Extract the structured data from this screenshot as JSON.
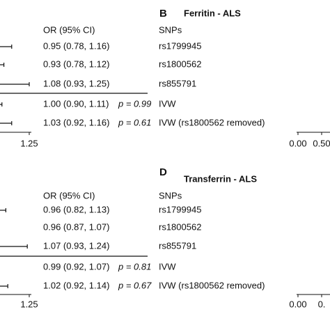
{
  "panels": [
    {
      "letter": "B",
      "title": "Ferritin - ALS",
      "col_or": "OR (95% CI)",
      "col_snp": "SNPs",
      "rows": [
        {
          "ci": "0.95 (0.78, 1.16)",
          "upper": 1.16,
          "snp": "rs1799945"
        },
        {
          "ci": "0.93 (0.78, 1.12)",
          "upper": 1.12,
          "snp": "rs1800562"
        },
        {
          "ci": "1.08 (0.93, 1.25)",
          "upper": 1.25,
          "snp": "rs855791"
        },
        {
          "ci": "1.00 (0.90, 1.11)",
          "p": "p = 0.99",
          "upper": 1.11,
          "snp": "IVW"
        },
        {
          "ci": "1.03 (0.92, 1.16)",
          "p": "p = 0.61",
          "upper": 1.16,
          "snp": "IVW (rs1800562 removed)"
        }
      ],
      "left_ticks": [
        1.25
      ],
      "right_ticks": [
        {
          "value": 0,
          "label": "0.00"
        },
        {
          "value": 0.5,
          "label": "0.50"
        }
      ]
    },
    {
      "letter": "D",
      "title": "Transferrin - ALS",
      "col_or": "OR (95% CI)",
      "col_snp": "SNPs",
      "rows": [
        {
          "ci": "0.96 (0.82, 1.13)",
          "upper": 1.13,
          "snp": "rs1799945"
        },
        {
          "ci": "0.96 (0.87, 1.07)",
          "upper": 1.07,
          "snp": "rs1800562"
        },
        {
          "ci": "1.07 (0.93, 1.24)",
          "upper": 1.24,
          "snp": "rs855791"
        },
        {
          "ci": "0.99 (0.92, 1.07)",
          "p": "p = 0.81",
          "upper": 1.07,
          "snp": "IVW"
        },
        {
          "ci": "1.02 (0.92, 1.14)",
          "p": "p = 0.67",
          "upper": 1.14,
          "snp": "IVW (rs1800562 removed)"
        }
      ],
      "left_ticks": [
        1.25
      ],
      "right_ticks": [
        {
          "value": 0,
          "label": "0.00"
        },
        {
          "value": 0.5,
          "label": "0."
        }
      ]
    }
  ]
}
